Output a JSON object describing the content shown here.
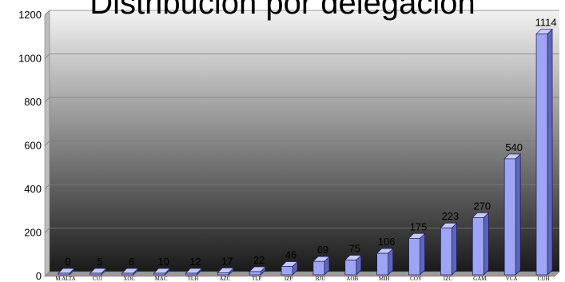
{
  "chart_data": {
    "type": "bar",
    "title": "Distribución por delegación",
    "categories": [
      "M.ALTA",
      "CUJ",
      "XOC",
      "MAC",
      "TLH",
      "AZC",
      "TLP",
      "IZP",
      "BJU",
      "AOB",
      "MIH",
      "COY",
      "IZC",
      "GAM",
      "VCA",
      "CUH"
    ],
    "values": [
      0,
      5,
      6,
      10,
      12,
      17,
      22,
      46,
      69,
      75,
      106,
      175,
      223,
      270,
      540,
      1114
    ],
    "ylim": [
      0,
      1200
    ],
    "yticks": [
      0,
      200,
      400,
      600,
      800,
      1000,
      1200
    ],
    "xlabel": "",
    "ylabel": "",
    "grid": true,
    "legend": "none",
    "style": "3d-bar",
    "colors": {
      "bar_front": "#9fa5f5",
      "bar_side": "#5f65b9",
      "bar_top": "#c6caff",
      "bar_edge": "#1c1c52",
      "plot_top": "#f2f2f2",
      "plot_bottom": "#1a1a1a"
    }
  }
}
